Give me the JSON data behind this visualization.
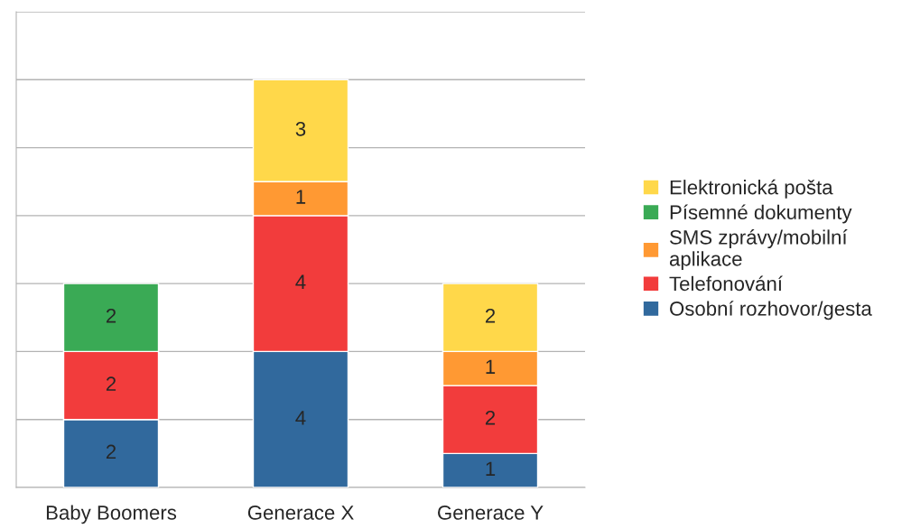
{
  "chart_data": {
    "type": "bar",
    "stacked": true,
    "relative": false,
    "categories": [
      "Baby Boomers",
      "Generace X",
      "Generace Y"
    ],
    "series": [
      {
        "name": "Osobní rozhovor/gesta",
        "color": "#31699d",
        "values": [
          2,
          4,
          1
        ]
      },
      {
        "name": "Telefonování",
        "color": "#f23c3c",
        "values": [
          2,
          4,
          2
        ]
      },
      {
        "name": "SMS zprávy/mobilní\naplikace",
        "color": "#ff9933",
        "values": [
          null,
          1,
          1
        ]
      },
      {
        "name": "Písemné dokumenty",
        "color": "#3aaa55",
        "values": [
          2,
          null,
          null
        ]
      },
      {
        "name": "Elektronická pošta",
        "color": "#ffd84a",
        "values": [
          null,
          3,
          2
        ]
      }
    ],
    "ylim": [
      0,
      14
    ],
    "yticks": [
      {
        "value": 0,
        "label": null
      },
      {
        "value": 2,
        "label": null
      },
      {
        "value": 4,
        "label": null
      },
      {
        "value": 6,
        "label": null
      },
      {
        "value": 8,
        "label": null
      },
      {
        "value": 10,
        "label": null
      },
      {
        "value": 12,
        "label": null
      },
      {
        "value": 14,
        "label": null
      }
    ],
    "tick_labels": "x",
    "grid": "y",
    "legend": "right",
    "data_labels": true
  }
}
